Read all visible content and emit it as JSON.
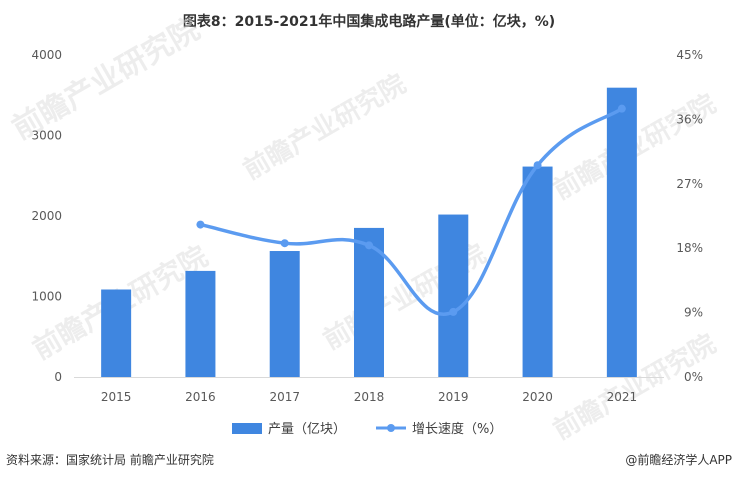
{
  "chart_data": {
    "type": "bar",
    "title": "图表8：2015-2021年中国集成电路产量(单位：亿块，%)",
    "categories": [
      "2015",
      "2016",
      "2017",
      "2018",
      "2019",
      "2020",
      "2021"
    ],
    "series": [
      {
        "name": "产量（亿块）",
        "type": "bar",
        "axis": "left",
        "values": [
          1087,
          1318,
          1565,
          1852,
          2018,
          2614,
          3594
        ],
        "color": "#3f86e0"
      },
      {
        "name": "增长速度（%）",
        "type": "line",
        "axis": "right",
        "values": [
          null,
          21.3,
          18.7,
          18.4,
          9.1,
          29.6,
          37.5
        ],
        "color": "#5b9bf0"
      }
    ],
    "y_left": {
      "min": 0,
      "max": 4000,
      "ticks": [
        "0",
        "1000",
        "2000",
        "3000",
        "4000"
      ]
    },
    "y_right": {
      "min": 0,
      "max": 45,
      "ticks": [
        "0%",
        "9%",
        "18%",
        "27%",
        "36%",
        "45%"
      ]
    },
    "grid": false,
    "legend_position": "bottom"
  },
  "footer": {
    "source": "资料来源：国家统计局 前瞻产业研究院",
    "brand": "@前瞻经济学人APP"
  },
  "watermark": "前瞻产业研究院"
}
